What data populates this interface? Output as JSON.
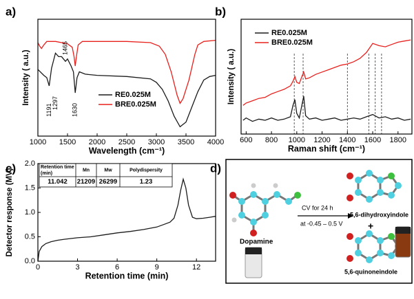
{
  "chart_data": [
    {
      "type": "line",
      "panel": "a)",
      "xlabel": "Wavelength (cm⁻¹)",
      "ylabel": "Intensity ( a.u.)",
      "xlim": [
        1000,
        4000
      ],
      "xticks": [
        1000,
        1500,
        2000,
        2500,
        3000,
        3500,
        4000
      ],
      "ylim": [
        0,
        100
      ],
      "legend": "lower right",
      "peak_labels": [
        1191,
        1297,
        1465,
        1630
      ],
      "series": [
        {
          "name": "RE0.025M",
          "color": "#1a1a1a",
          "x": [
            1000,
            1100,
            1150,
            1191,
            1230,
            1297,
            1350,
            1400,
            1465,
            1500,
            1560,
            1600,
            1630,
            1660,
            1700,
            1800,
            2000,
            2500,
            2900,
            3000,
            3100,
            3200,
            3300,
            3400,
            3500,
            3600,
            3700,
            3800,
            3900,
            4000
          ],
          "values": [
            57,
            52,
            50,
            43,
            58,
            71,
            68,
            68,
            64,
            66,
            60,
            55,
            37,
            50,
            55,
            53,
            52,
            51,
            49,
            46,
            40,
            30,
            17,
            8,
            12,
            25,
            38,
            48,
            51,
            52
          ]
        },
        {
          "name": "BRE0.025M",
          "color": "#e8201c",
          "x": [
            1000,
            1030,
            1060,
            1100,
            1150,
            1300,
            1500,
            1580,
            1610,
            1630,
            1650,
            1680,
            1750,
            2000,
            2500,
            2900,
            3050,
            3150,
            3250,
            3350,
            3400,
            3450,
            3550,
            3650,
            3700,
            3800,
            4000
          ],
          "values": [
            80,
            77,
            75,
            78,
            81,
            81,
            79,
            76,
            68,
            60,
            68,
            78,
            81,
            81,
            81,
            80,
            77,
            70,
            55,
            35,
            28,
            32,
            48,
            70,
            78,
            81,
            82
          ]
        }
      ]
    },
    {
      "type": "line",
      "panel": "b)",
      "xlabel": "Raman shift (cm⁻¹)",
      "ylabel": "Intensity ( a.u.)",
      "xlim": [
        560,
        1910
      ],
      "xticks": [
        600,
        800,
        1000,
        1200,
        1400,
        1600,
        1800
      ],
      "ylim": [
        0,
        100
      ],
      "legend": "upper left",
      "vlines": [
        980,
        1050,
        1400,
        1570,
        1620,
        1670
      ],
      "series": [
        {
          "name": "RE0.025M",
          "color": "#1a1a1a",
          "x": [
            575,
            600,
            650,
            700,
            750,
            800,
            850,
            900,
            950,
            970,
            985,
            1000,
            1020,
            1040,
            1055,
            1070,
            1100,
            1150,
            1200,
            1250,
            1300,
            1350,
            1400,
            1450,
            1500,
            1550,
            1600,
            1650,
            1700,
            1750,
            1800,
            1850,
            1900
          ],
          "values": [
            12,
            14,
            11,
            13,
            12,
            14,
            12,
            13,
            15,
            25,
            30,
            18,
            14,
            25,
            33,
            16,
            13,
            14,
            12,
            13,
            14,
            12,
            13,
            14,
            13,
            15,
            17,
            14,
            15,
            13,
            14,
            12,
            13
          ]
        },
        {
          "name": "BRE0.025M",
          "color": "#e8201c",
          "x": [
            575,
            600,
            650,
            700,
            750,
            800,
            850,
            900,
            950,
            970,
            985,
            1000,
            1020,
            1040,
            1055,
            1070,
            1100,
            1150,
            1200,
            1250,
            1300,
            1350,
            1400,
            1450,
            1500,
            1550,
            1600,
            1650,
            1700,
            1750,
            1800,
            1850,
            1900
          ],
          "values": [
            25,
            27,
            29,
            31,
            32,
            35,
            37,
            39,
            42,
            46,
            50,
            45,
            44,
            50,
            54,
            48,
            49,
            52,
            54,
            56,
            58,
            60,
            61,
            63,
            66,
            71,
            79,
            77,
            76,
            78,
            80,
            81,
            82
          ]
        }
      ]
    },
    {
      "type": "line",
      "panel": "c)",
      "xlabel": "Retention time (min)",
      "ylabel": "Detector response (MV)",
      "xlim": [
        0,
        13.45
      ],
      "xticks": [
        0,
        3,
        6,
        9,
        12
      ],
      "ylim": [
        0,
        2.0
      ],
      "yticks": [
        {
          "value": 0,
          "label": "0.0"
        },
        0.5,
        {
          "value": 1,
          "label": "1.0"
        },
        1.5,
        {
          "value": 2,
          "label": "2.0"
        }
      ],
      "table": {
        "header": [
          "Retention time (min)",
          "Mn",
          "Mw",
          "Polydispersity"
        ],
        "rows": [
          [
            "11.042",
            "21209",
            "26299",
            "1.23"
          ]
        ]
      },
      "series": [
        {
          "color": "#1a1a1a",
          "x": [
            0,
            0.1,
            0.3,
            0.6,
            1,
            1.5,
            2,
            3,
            4,
            5,
            6,
            7,
            8,
            9,
            9.5,
            10,
            10.3,
            10.6,
            10.8,
            11,
            11.2,
            11.4,
            11.7,
            12,
            12.5,
            13,
            13.45
          ],
          "values": [
            0,
            0.2,
            0.3,
            0.36,
            0.4,
            0.43,
            0.45,
            0.48,
            0.5,
            0.54,
            0.58,
            0.61,
            0.65,
            0.7,
            0.75,
            0.8,
            0.88,
            1.15,
            1.45,
            1.68,
            1.5,
            1.15,
            0.9,
            0.87,
            0.88,
            0.9,
            0.92
          ]
        }
      ]
    }
  ],
  "diagram": {
    "panel": "d)",
    "start": "Dopamine",
    "condition_1": "CV for 24 h",
    "condition_2": "at -0.45 – 0.5 V",
    "product_1": "5,6-dihydroxyindole",
    "plus": "+",
    "product_2": "5,6-quinoneindole"
  }
}
